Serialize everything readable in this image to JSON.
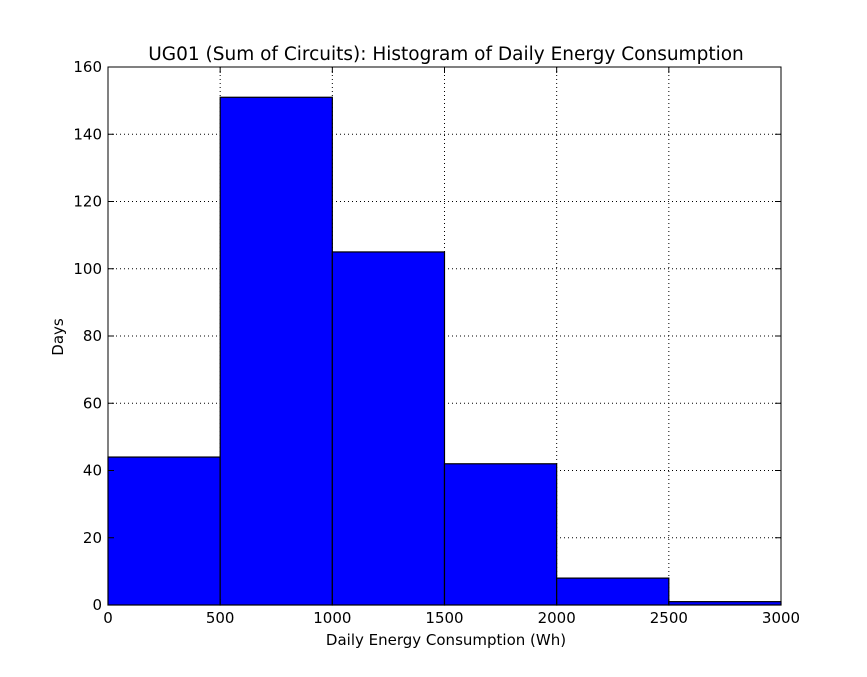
{
  "chart_data": {
    "type": "bar",
    "title": "UG01 (Sum of Circuits): Histogram of Daily Energy Consumption",
    "xlabel": "Daily Energy Consumption (Wh)",
    "ylabel": "Days",
    "bins": [
      {
        "start": 0,
        "end": 500,
        "count": 44
      },
      {
        "start": 500,
        "end": 1000,
        "count": 151
      },
      {
        "start": 1000,
        "end": 1500,
        "count": 105
      },
      {
        "start": 1500,
        "end": 2000,
        "count": 42
      },
      {
        "start": 2000,
        "end": 2500,
        "count": 8
      },
      {
        "start": 2500,
        "end": 3000,
        "count": 1
      }
    ],
    "xlim": [
      0,
      3000
    ],
    "ylim": [
      0,
      160
    ],
    "xticks": [
      "0",
      "500",
      "1000",
      "1500",
      "2000",
      "2500",
      "3000"
    ],
    "yticks": [
      "0",
      "20",
      "40",
      "60",
      "80",
      "100",
      "120",
      "140",
      "160"
    ],
    "grid": true,
    "bar_color": "#0000ff",
    "edge_color": "#000000"
  }
}
